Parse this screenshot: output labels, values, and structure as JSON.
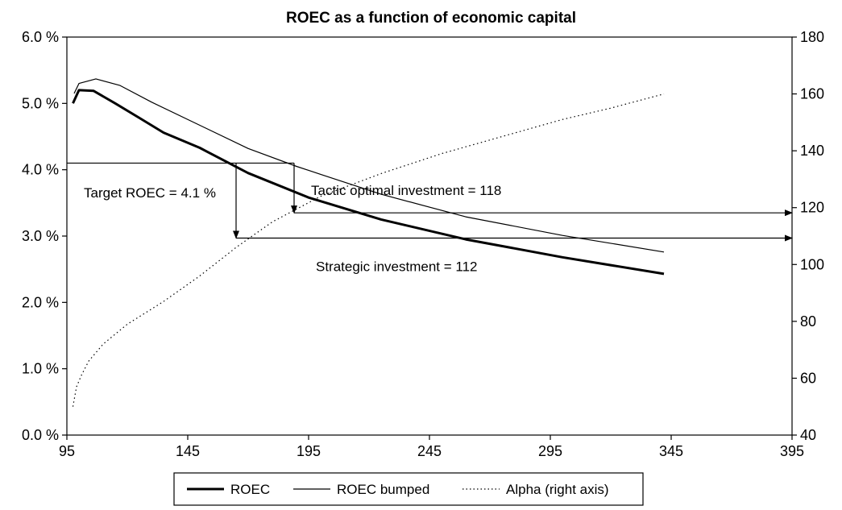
{
  "chart_data": {
    "type": "line",
    "title": "ROEC as a function of economic capital",
    "xlim": [
      95,
      395
    ],
    "ylim_left": [
      0,
      0.06
    ],
    "ylim_right": [
      40,
      180
    ],
    "x_ticks": [
      95,
      145,
      195,
      245,
      295,
      345,
      395
    ],
    "x_tick_labels": [
      "95",
      "145",
      "195",
      "245",
      "295",
      "345",
      "395"
    ],
    "y_left_ticks": [
      0,
      0.01,
      0.02,
      0.03,
      0.04,
      0.05,
      0.06
    ],
    "y_left_tick_labels": [
      "0.0 %",
      "1.0 %",
      "2.0 %",
      "3.0 %",
      "4.0 %",
      "5.0 %",
      "6.0 %"
    ],
    "y_right_ticks": [
      40,
      60,
      80,
      100,
      120,
      140,
      160,
      180
    ],
    "y_right_tick_labels": [
      "40",
      "60",
      "80",
      "100",
      "120",
      "140",
      "160",
      "180"
    ],
    "grid": false,
    "legend_position": "bottom",
    "series": [
      {
        "name": "ROEC",
        "axis": "left",
        "style": "thick",
        "x": [
          97.5,
          100,
          106,
          115,
          125,
          135,
          150,
          170,
          195,
          225,
          260,
          300,
          342
        ],
        "y": [
          0.05,
          0.052,
          0.0519,
          0.05,
          0.0478,
          0.0456,
          0.0433,
          0.0395,
          0.0358,
          0.0325,
          0.0295,
          0.0268,
          0.0243
        ]
      },
      {
        "name": "ROEC bumped",
        "axis": "left",
        "style": "thin",
        "x": [
          98,
          100,
          107,
          117,
          130,
          150,
          170,
          190,
          200,
          225,
          260,
          300,
          342
        ],
        "y": [
          0.0515,
          0.053,
          0.0537,
          0.0527,
          0.0502,
          0.0467,
          0.0432,
          0.0405,
          0.0393,
          0.0363,
          0.0329,
          0.0301,
          0.0276
        ]
      },
      {
        "name": "Alpha (right axis)",
        "axis": "right",
        "style": "dotted",
        "x": [
          97.5,
          99,
          101,
          104,
          110,
          120,
          135,
          150,
          165,
          180,
          200,
          225,
          250,
          275,
          300,
          320,
          342
        ],
        "y": [
          50,
          57,
          61,
          66,
          72,
          79,
          87,
          96,
          106,
          115,
          124,
          132,
          139,
          145,
          151,
          155,
          160
        ]
      }
    ],
    "annotations": [
      {
        "id": "target",
        "text": "Target ROEC = 4.1 %",
        "x": 102,
        "y": 0.0358
      },
      {
        "id": "tactic",
        "text": "Tactic optimal investment = 118",
        "x": 196,
        "y": 0.0362
      },
      {
        "id": "strategic",
        "text": "Strategic investment = 112",
        "x": 198,
        "y": 0.0247
      }
    ],
    "guides": {
      "target_line": {
        "x_start": 95,
        "x_end": 189,
        "y": 0.041
      },
      "strategic_drop": {
        "x": 165,
        "y_from": 0.041,
        "y_to": 0.0297
      },
      "tactic_drop": {
        "x": 189,
        "y_from": 0.041,
        "y_to": 0.0335
      },
      "strategic_arrow": {
        "x_from": 165,
        "x_to": 395,
        "y": 0.0297
      },
      "tactic_arrow": {
        "x_from": 189,
        "x_to": 395,
        "y": 0.0335
      }
    }
  }
}
